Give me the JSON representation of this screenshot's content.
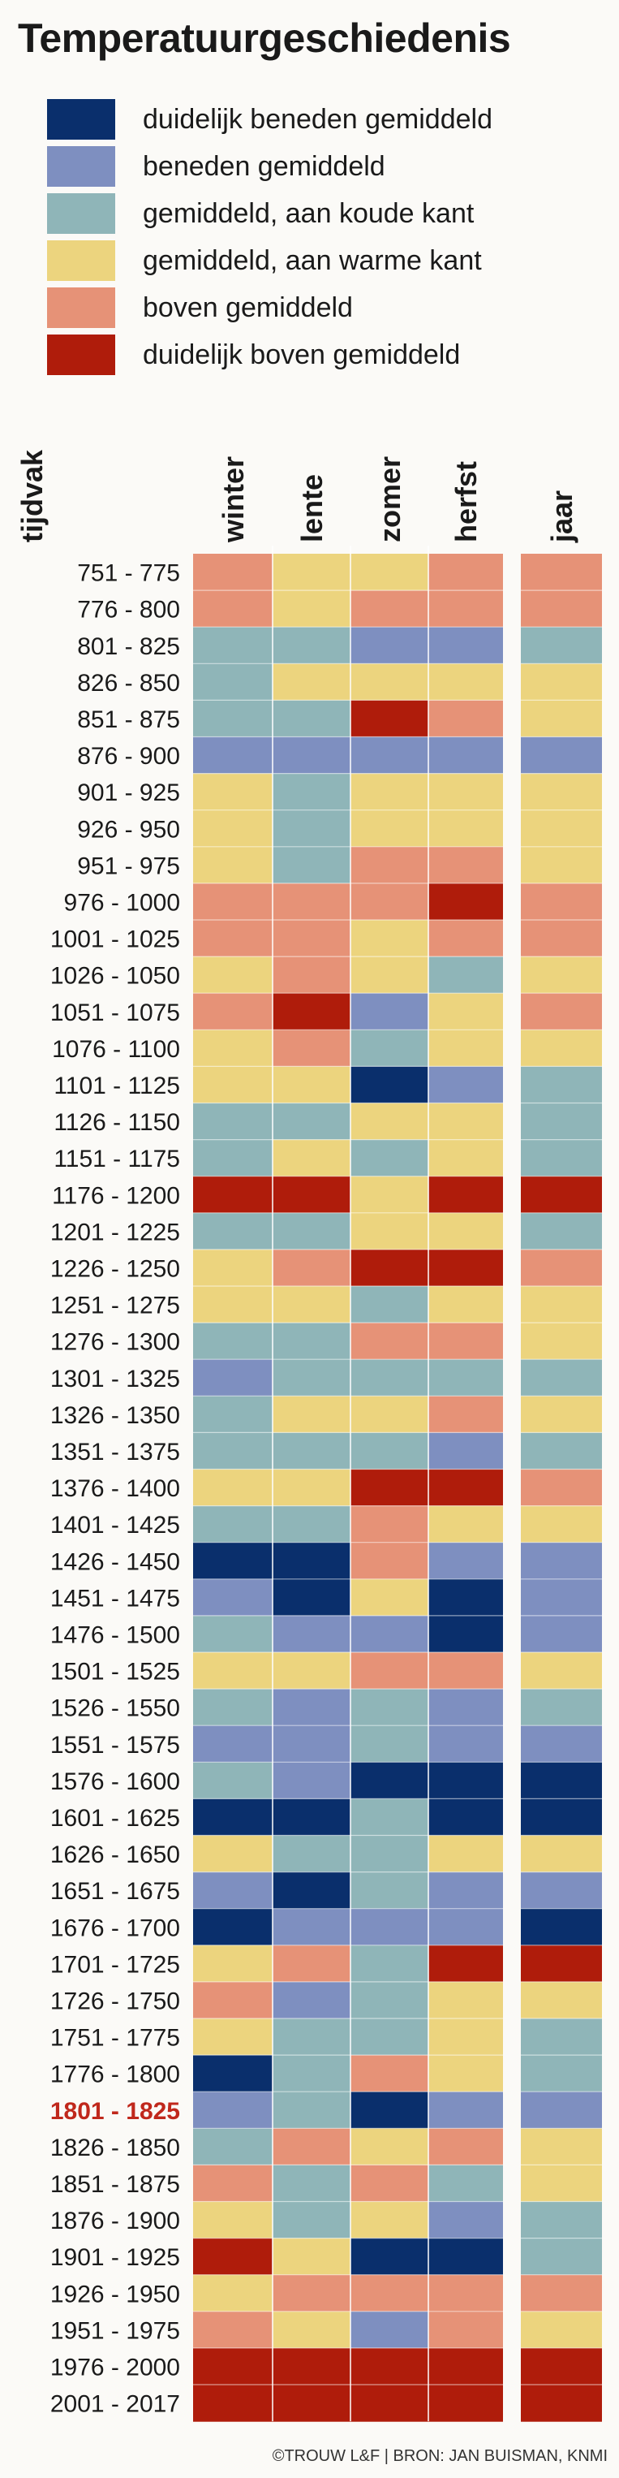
{
  "title": "Temperatuurgeschiedenis",
  "colors": {
    "c1": "#0a2f6c",
    "c2": "#7e8fc0",
    "c3": "#8fb5b8",
    "c4": "#ecd47e",
    "c5": "#e69277",
    "c6": "#af1c0b"
  },
  "legend": [
    {
      "key": "c1",
      "label": "duidelijk beneden gemiddeld"
    },
    {
      "key": "c2",
      "label": "beneden gemiddeld"
    },
    {
      "key": "c3",
      "label": "gemiddeld, aan koude kant"
    },
    {
      "key": "c4",
      "label": "gemiddeld, aan warme kant"
    },
    {
      "key": "c5",
      "label": "boven gemiddeld"
    },
    {
      "key": "c6",
      "label": "duidelijk boven gemiddeld"
    }
  ],
  "credit": "©TROUW L&F | BRON: JAN BUISMAN, KNMI",
  "chart_data": {
    "type": "heatmap",
    "row_header": "tijdvak",
    "columns": [
      "winter",
      "lente",
      "zomer",
      "herfst",
      "jaar"
    ],
    "highlight_row": "1801 - 1825",
    "value_scale": {
      "1": "duidelijk beneden gemiddeld",
      "2": "beneden gemiddeld",
      "3": "gemiddeld, aan koude kant",
      "4": "gemiddeld, aan warme kant",
      "5": "boven gemiddeld",
      "6": "duidelijk boven gemiddeld"
    },
    "rows": [
      {
        "period": "751 -  775",
        "values": [
          5,
          4,
          4,
          5,
          5
        ]
      },
      {
        "period": "776 -  800",
        "values": [
          5,
          4,
          5,
          5,
          5
        ]
      },
      {
        "period": "801 -  825",
        "values": [
          3,
          3,
          2,
          2,
          3
        ]
      },
      {
        "period": "826 -  850",
        "values": [
          3,
          4,
          4,
          4,
          4
        ]
      },
      {
        "period": "851 -  875",
        "values": [
          3,
          3,
          6,
          5,
          4
        ]
      },
      {
        "period": "876 -  900",
        "values": [
          2,
          2,
          2,
          2,
          2
        ]
      },
      {
        "period": "901 -  925",
        "values": [
          4,
          3,
          4,
          4,
          4
        ]
      },
      {
        "period": "926 -  950",
        "values": [
          4,
          3,
          4,
          4,
          4
        ]
      },
      {
        "period": "951 -  975",
        "values": [
          4,
          3,
          5,
          5,
          4
        ]
      },
      {
        "period": "976 - 1000",
        "values": [
          5,
          5,
          5,
          6,
          5
        ]
      },
      {
        "period": "1001 - 1025",
        "values": [
          5,
          5,
          4,
          5,
          5
        ]
      },
      {
        "period": "1026 - 1050",
        "values": [
          4,
          5,
          4,
          3,
          4
        ]
      },
      {
        "period": "1051 - 1075",
        "values": [
          5,
          6,
          2,
          4,
          5
        ]
      },
      {
        "period": "1076 - 1100",
        "values": [
          4,
          5,
          3,
          4,
          4
        ]
      },
      {
        "period": "1101 - 1125",
        "values": [
          4,
          4,
          1,
          2,
          3
        ]
      },
      {
        "period": "1126 - 1150",
        "values": [
          3,
          3,
          4,
          4,
          3
        ]
      },
      {
        "period": "1151 - 1175",
        "values": [
          3,
          4,
          3,
          4,
          3
        ]
      },
      {
        "period": "1176 - 1200",
        "values": [
          6,
          6,
          4,
          6,
          6
        ]
      },
      {
        "period": "1201 - 1225",
        "values": [
          3,
          3,
          4,
          4,
          3
        ]
      },
      {
        "period": "1226 - 1250",
        "values": [
          4,
          5,
          6,
          6,
          5
        ]
      },
      {
        "period": "1251 - 1275",
        "values": [
          4,
          4,
          3,
          4,
          4
        ]
      },
      {
        "period": "1276 - 1300",
        "values": [
          3,
          3,
          5,
          5,
          4
        ]
      },
      {
        "period": "1301 - 1325",
        "values": [
          2,
          3,
          3,
          3,
          3
        ]
      },
      {
        "period": "1326 - 1350",
        "values": [
          3,
          4,
          4,
          5,
          4
        ]
      },
      {
        "period": "1351 - 1375",
        "values": [
          3,
          3,
          3,
          2,
          3
        ]
      },
      {
        "period": "1376 - 1400",
        "values": [
          4,
          4,
          6,
          6,
          5
        ]
      },
      {
        "period": "1401 - 1425",
        "values": [
          3,
          3,
          5,
          4,
          4
        ]
      },
      {
        "period": "1426 - 1450",
        "values": [
          1,
          1,
          5,
          2,
          2
        ]
      },
      {
        "period": "1451 - 1475",
        "values": [
          2,
          1,
          4,
          1,
          2
        ]
      },
      {
        "period": "1476 - 1500",
        "values": [
          3,
          2,
          2,
          1,
          2
        ]
      },
      {
        "period": "1501 - 1525",
        "values": [
          4,
          4,
          5,
          5,
          4
        ]
      },
      {
        "period": "1526 - 1550",
        "values": [
          3,
          2,
          3,
          2,
          3
        ]
      },
      {
        "period": "1551 - 1575",
        "values": [
          2,
          2,
          3,
          2,
          2
        ]
      },
      {
        "period": "1576 - 1600",
        "values": [
          3,
          2,
          1,
          1,
          1
        ]
      },
      {
        "period": "1601 - 1625",
        "values": [
          1,
          1,
          3,
          1,
          1
        ]
      },
      {
        "period": "1626 - 1650",
        "values": [
          4,
          3,
          3,
          4,
          4
        ]
      },
      {
        "period": "1651 - 1675",
        "values": [
          2,
          1,
          3,
          2,
          2
        ]
      },
      {
        "period": "1676 - 1700",
        "values": [
          1,
          2,
          2,
          2,
          1
        ]
      },
      {
        "period": "1701 - 1725",
        "values": [
          4,
          5,
          3,
          6,
          6
        ]
      },
      {
        "period": "1726 - 1750",
        "values": [
          5,
          2,
          3,
          4,
          4
        ]
      },
      {
        "period": "1751 - 1775",
        "values": [
          4,
          3,
          3,
          4,
          3
        ]
      },
      {
        "period": "1776 - 1800",
        "values": [
          1,
          3,
          5,
          4,
          3
        ]
      },
      {
        "period": "1801 - 1825",
        "values": [
          2,
          3,
          1,
          2,
          2
        ]
      },
      {
        "period": "1826 - 1850",
        "values": [
          3,
          5,
          4,
          5,
          4
        ]
      },
      {
        "period": "1851 - 1875",
        "values": [
          5,
          3,
          5,
          3,
          4
        ]
      },
      {
        "period": "1876 - 1900",
        "values": [
          4,
          3,
          4,
          2,
          3
        ]
      },
      {
        "period": "1901 - 1925",
        "values": [
          6,
          4,
          1,
          1,
          3
        ]
      },
      {
        "period": "1926 - 1950",
        "values": [
          4,
          5,
          5,
          5,
          5
        ]
      },
      {
        "period": "1951 - 1975",
        "values": [
          5,
          4,
          2,
          5,
          4
        ]
      },
      {
        "period": "1976 - 2000",
        "values": [
          6,
          6,
          6,
          6,
          6
        ]
      },
      {
        "period": "2001 - 2017",
        "values": [
          6,
          6,
          6,
          6,
          6
        ]
      }
    ]
  }
}
